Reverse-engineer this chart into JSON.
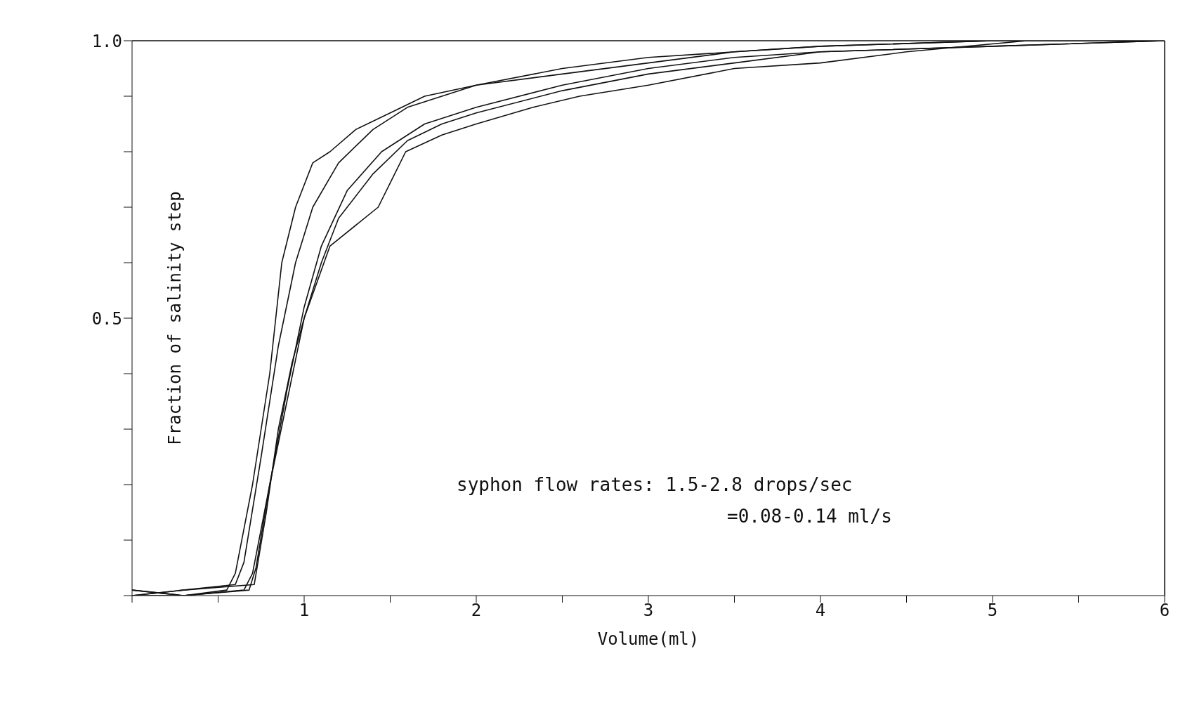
{
  "chart_data": {
    "type": "line",
    "xlabel": "Volume(ml)",
    "ylabel": "Fraction of salinity step",
    "xlim": [
      0,
      6
    ],
    "ylim": [
      0,
      1
    ],
    "xticks": [
      {
        "value": 0,
        "label": null
      },
      {
        "value": 0.5,
        "label": null
      },
      1,
      {
        "value": 1.5,
        "label": null
      },
      2,
      {
        "value": 2.5,
        "label": null
      },
      3,
      {
        "value": 3.5,
        "label": null
      },
      4,
      {
        "value": 4.5,
        "label": null
      },
      5,
      {
        "value": 5.5,
        "label": null
      },
      6
    ],
    "yticks": [
      {
        "value": 0,
        "label": null
      },
      {
        "value": 0.1,
        "label": null
      },
      {
        "value": 0.2,
        "label": null
      },
      {
        "value": 0.3,
        "label": null
      },
      {
        "value": 0.4,
        "label": null
      },
      {
        "value": 0.5,
        "label": "0.5"
      },
      {
        "value": 0.6,
        "label": null
      },
      {
        "value": 0.7,
        "label": null
      },
      {
        "value": 0.8,
        "label": null
      },
      {
        "value": 0.9,
        "label": null
      },
      {
        "value": 1,
        "label": "1.0"
      }
    ],
    "grid": false,
    "marker": "none",
    "line_style": "solid",
    "annotations": [
      "syphon flow rates:  1.5-2.8 drops/sec",
      "=0.08-0.14 ml/s"
    ],
    "series": [
      {
        "color": "#111111",
        "x": [
          0,
          0.3,
          0.55,
          0.6,
          0.7,
          0.8,
          0.87,
          0.95,
          1.05,
          1.15,
          1.3,
          1.5,
          1.7,
          2.0,
          2.5,
          3.0,
          3.5,
          4.0,
          5.0,
          6.0
        ],
        "values": [
          0.01,
          0.0,
          0.01,
          0.04,
          0.2,
          0.4,
          0.6,
          0.7,
          0.78,
          0.8,
          0.84,
          0.87,
          0.9,
          0.92,
          0.95,
          0.97,
          0.98,
          0.99,
          1.0,
          1.0
        ]
      },
      {
        "color": "#111111",
        "x": [
          0,
          0.3,
          0.6,
          0.65,
          0.75,
          0.85,
          0.95,
          1.05,
          1.2,
          1.4,
          1.6,
          1.8,
          2.0,
          2.5,
          3.0,
          3.5,
          4.0,
          5.0,
          6.0
        ],
        "values": [
          0.0,
          0.01,
          0.02,
          0.06,
          0.25,
          0.45,
          0.6,
          0.7,
          0.78,
          0.84,
          0.88,
          0.9,
          0.92,
          0.94,
          0.96,
          0.98,
          0.99,
          1.0,
          1.0
        ]
      },
      {
        "color": "#111111",
        "x": [
          0,
          0.3,
          0.65,
          0.7,
          0.8,
          0.9,
          1.0,
          1.1,
          1.25,
          1.45,
          1.7,
          2.0,
          2.5,
          3.0,
          3.5,
          4.0,
          5.0,
          6.0
        ],
        "values": [
          0.0,
          0.0,
          0.01,
          0.04,
          0.2,
          0.37,
          0.52,
          0.63,
          0.73,
          0.8,
          0.85,
          0.88,
          0.92,
          0.95,
          0.97,
          0.98,
          0.99,
          1.0
        ]
      },
      {
        "color": "#111111",
        "x": [
          0,
          0.3,
          0.68,
          0.72,
          0.8,
          0.9,
          1.0,
          1.1,
          1.2,
          1.4,
          1.6,
          1.8,
          2.0,
          2.5,
          3.0,
          3.5,
          4.0,
          5.0,
          6.0
        ],
        "values": [
          0.01,
          0.0,
          0.01,
          0.05,
          0.2,
          0.35,
          0.5,
          0.6,
          0.68,
          0.76,
          0.82,
          0.85,
          0.87,
          0.91,
          0.94,
          0.96,
          0.98,
          0.99,
          1.0
        ]
      },
      {
        "color": "#111111",
        "x": [
          0,
          0.3,
          0.71,
          0.78,
          0.85,
          0.93,
          1.0,
          1.15,
          1.43,
          1.59,
          1.8,
          2.0,
          2.33,
          2.6,
          3.0,
          3.5,
          4.0,
          4.5,
          5.2,
          6.0
        ],
        "values": [
          0.0,
          0.01,
          0.02,
          0.15,
          0.3,
          0.42,
          0.5,
          0.63,
          0.7,
          0.8,
          0.83,
          0.85,
          0.88,
          0.9,
          0.92,
          0.95,
          0.96,
          0.98,
          1.0,
          1.0
        ]
      }
    ]
  }
}
